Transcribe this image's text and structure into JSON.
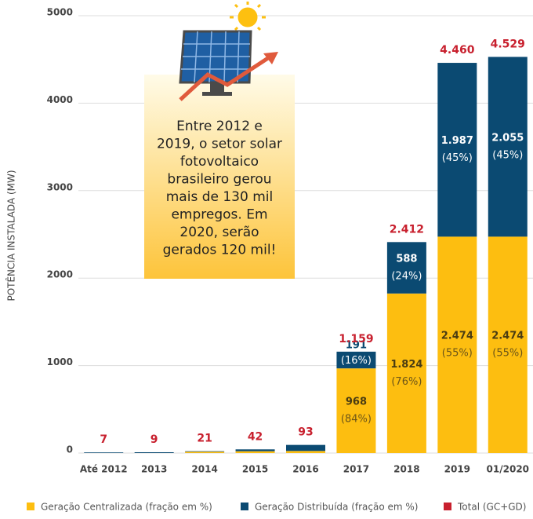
{
  "chart_data": {
    "type": "stacked-bar",
    "y_label": "POTÊNCIA INSTALADA (MW)",
    "categories": [
      "Até 2012",
      "2013",
      "2014",
      "2015",
      "2016",
      "2017",
      "2018",
      "2019",
      "01/2020"
    ],
    "series": [
      {
        "name": "Geração Centralizada (fração em %)",
        "color": "#fdbe10",
        "values": [
          0,
          0,
          15,
          21,
          24,
          968,
          1824,
          2474,
          2474
        ],
        "value_labels": [
          null,
          null,
          null,
          null,
          null,
          "968",
          "1.824",
          "2.474",
          "2.474"
        ],
        "share_labels": [
          null,
          null,
          null,
          null,
          null,
          "(84%)",
          "(76%)",
          "(55%)",
          "(55%)"
        ]
      },
      {
        "name": "Geração Distribuída (fração em %)",
        "color": "#0b4a72",
        "values": [
          7,
          9,
          6,
          21,
          69,
          191,
          588,
          1987,
          2055
        ],
        "value_labels": [
          null,
          null,
          null,
          null,
          null,
          "191",
          "588",
          "1.987",
          "2.055"
        ],
        "share_labels": [
          null,
          null,
          null,
          null,
          null,
          "(16%)",
          "(24%)",
          "(45%)",
          "(45%)"
        ]
      }
    ],
    "totals": {
      "name": "Total (GC+GD)",
      "color": "#c8202e",
      "values": [
        7,
        9,
        21,
        42,
        93,
        1159,
        2412,
        4460,
        4529
      ],
      "value_labels": [
        "7",
        "9",
        "21",
        "42",
        "93",
        "1.159",
        "2.412",
        "4.460",
        "4.529"
      ]
    },
    "annotation": [
      "Entre 2012 e",
      "2019, o setor solar",
      "fotovoltaico",
      "brasileiro gerou",
      "mais de 130 mil",
      "empregos. Em",
      "2020, serão",
      "gerados 120 mil!"
    ],
    "ylim": [
      0,
      5000
    ],
    "yticks": [
      0,
      1000,
      2000,
      3000,
      4000,
      5000
    ],
    "grid": true
  }
}
